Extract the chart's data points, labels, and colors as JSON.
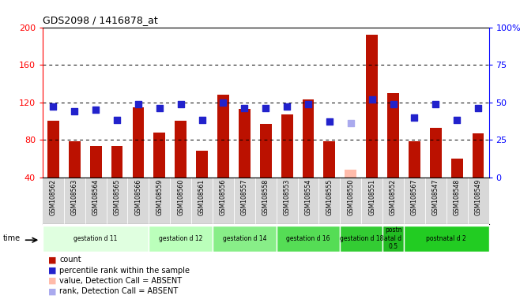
{
  "title": "GDS2098 / 1416878_at",
  "samples": [
    "GSM108562",
    "GSM108563",
    "GSM108564",
    "GSM108565",
    "GSM108566",
    "GSM108559",
    "GSM108560",
    "GSM108561",
    "GSM108556",
    "GSM108557",
    "GSM108558",
    "GSM108553",
    "GSM108554",
    "GSM108555",
    "GSM108550",
    "GSM108551",
    "GSM108552",
    "GSM108567",
    "GSM108547",
    "GSM108548",
    "GSM108549"
  ],
  "bar_values": [
    100,
    78,
    73,
    73,
    115,
    88,
    100,
    68,
    128,
    113,
    97,
    107,
    123,
    78,
    48,
    192,
    130,
    78,
    93,
    60,
    87
  ],
  "bar_absent": [
    false,
    false,
    false,
    false,
    false,
    false,
    false,
    false,
    false,
    false,
    false,
    false,
    false,
    false,
    true,
    false,
    false,
    false,
    false,
    false,
    false
  ],
  "dot_percentile": [
    47,
    44,
    45,
    38,
    49,
    46,
    49,
    38,
    50,
    46,
    46,
    47,
    49,
    37,
    36,
    52,
    49,
    40,
    49,
    38,
    46
  ],
  "dot_absent": [
    false,
    false,
    false,
    false,
    false,
    false,
    false,
    false,
    false,
    false,
    false,
    false,
    false,
    false,
    true,
    false,
    false,
    false,
    false,
    false,
    false
  ],
  "groups": [
    {
      "label": "gestation d 11",
      "start": 0,
      "end": 5,
      "color": "#e0ffe0"
    },
    {
      "label": "gestation d 12",
      "start": 5,
      "end": 8,
      "color": "#bbffbb"
    },
    {
      "label": "gestation d 14",
      "start": 8,
      "end": 11,
      "color": "#88ee88"
    },
    {
      "label": "gestation d 16",
      "start": 11,
      "end": 14,
      "color": "#55dd55"
    },
    {
      "label": "gestation d 18",
      "start": 14,
      "end": 16,
      "color": "#33cc33"
    },
    {
      "label": "postn\natal d\n0.5",
      "start": 16,
      "end": 17,
      "color": "#22bb22"
    },
    {
      "label": "postnatal d 2",
      "start": 17,
      "end": 21,
      "color": "#22cc22"
    }
  ],
  "ylim_left": [
    40,
    200
  ],
  "ylim_right": [
    0,
    100
  ],
  "yticks_left": [
    40,
    80,
    120,
    160,
    200
  ],
  "yticks_right": [
    0,
    25,
    50,
    75,
    100
  ],
  "bar_color": "#bb1100",
  "bar_absent_color": "#ffbbaa",
  "dot_color": "#2222cc",
  "dot_absent_color": "#aaaaee",
  "bg_color": "#ffffff",
  "plot_bg": "#ffffff",
  "label_area_color": "#d8d8d8"
}
